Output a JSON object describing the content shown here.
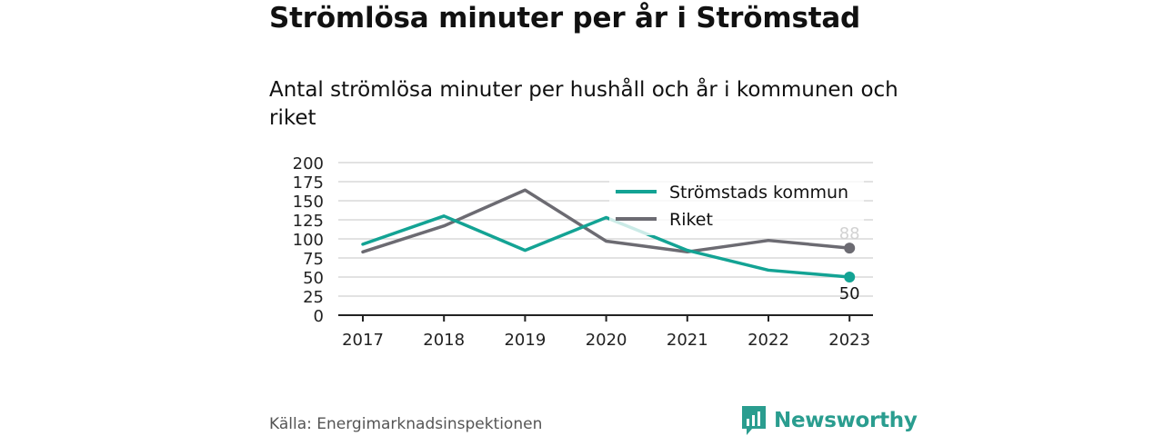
{
  "header": {
    "title": "Strömlösa minuter per år i Strömstad",
    "subtitle": "Antal strömlösa minuter per hushåll och år i kommunen och riket"
  },
  "footer": {
    "source": "Källa: Energimarknadsinspektionen",
    "brand": "Newsworthy"
  },
  "colors": {
    "kommun": "#13a394",
    "riket": "#6c6b72",
    "grid": "#d9d9d9",
    "axis": "#222222",
    "brand": "#2a9d8f"
  },
  "chart_data": {
    "type": "line",
    "x": [
      "2017",
      "2018",
      "2019",
      "2020",
      "2021",
      "2022",
      "2023"
    ],
    "series": [
      {
        "name": "Strömstads kommun",
        "color": "#13a394",
        "values": [
          93,
          130,
          85,
          128,
          85,
          59,
          50
        ],
        "end_label": "50"
      },
      {
        "name": "Riket",
        "color": "#6c6b72",
        "values": [
          83,
          117,
          164,
          97,
          83,
          98,
          88
        ],
        "end_label": "88"
      }
    ],
    "y_ticks": [
      "200",
      "175",
      "150",
      "125",
      "100",
      "75",
      "50",
      "25",
      "0"
    ],
    "ylim": [
      0,
      200
    ],
    "grid": true,
    "legend_position": "top-right",
    "xlabel": "",
    "ylabel": ""
  }
}
